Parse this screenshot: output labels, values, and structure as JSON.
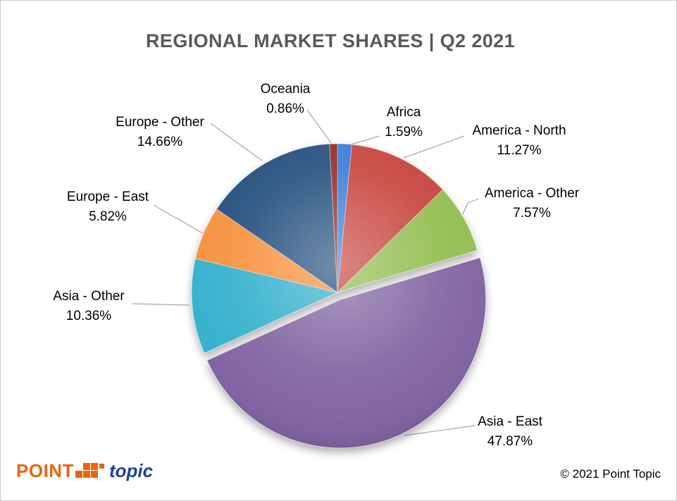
{
  "chart_data": {
    "type": "pie",
    "title": "REGIONAL MARKET SHARES | Q2 2021",
    "unit": "%",
    "start_angle_deg": 0,
    "direction": "clockwise",
    "legend": "none",
    "data_labels": "outside-with-leader-lines",
    "slices": [
      {
        "label": "Africa",
        "value": 1.59,
        "display": "1.59%",
        "color": "#3c7dd7"
      },
      {
        "label": "America - North",
        "value": 11.27,
        "display": "11.27%",
        "color": "#c8453e"
      },
      {
        "label": "America - Other",
        "value": 7.57,
        "display": "7.57%",
        "color": "#92be4f"
      },
      {
        "label": "Asia - East",
        "value": 47.87,
        "display": "47.87%",
        "color": "#8064a2",
        "exploded": true
      },
      {
        "label": "Asia - Other",
        "value": 10.36,
        "display": "10.36%",
        "color": "#35b1ce"
      },
      {
        "label": "Europe - East",
        "value": 5.82,
        "display": "5.82%",
        "color": "#f6913d"
      },
      {
        "label": "Europe - Other",
        "value": 14.66,
        "display": "14.66%",
        "color": "#25507f"
      },
      {
        "label": "Oceania",
        "value": 0.86,
        "display": "0.86%",
        "color": "#922e2a"
      }
    ]
  },
  "footer": {
    "logo_point": "POINT",
    "logo_topic": "topic",
    "copyright": "© 2021 Point Topic"
  }
}
